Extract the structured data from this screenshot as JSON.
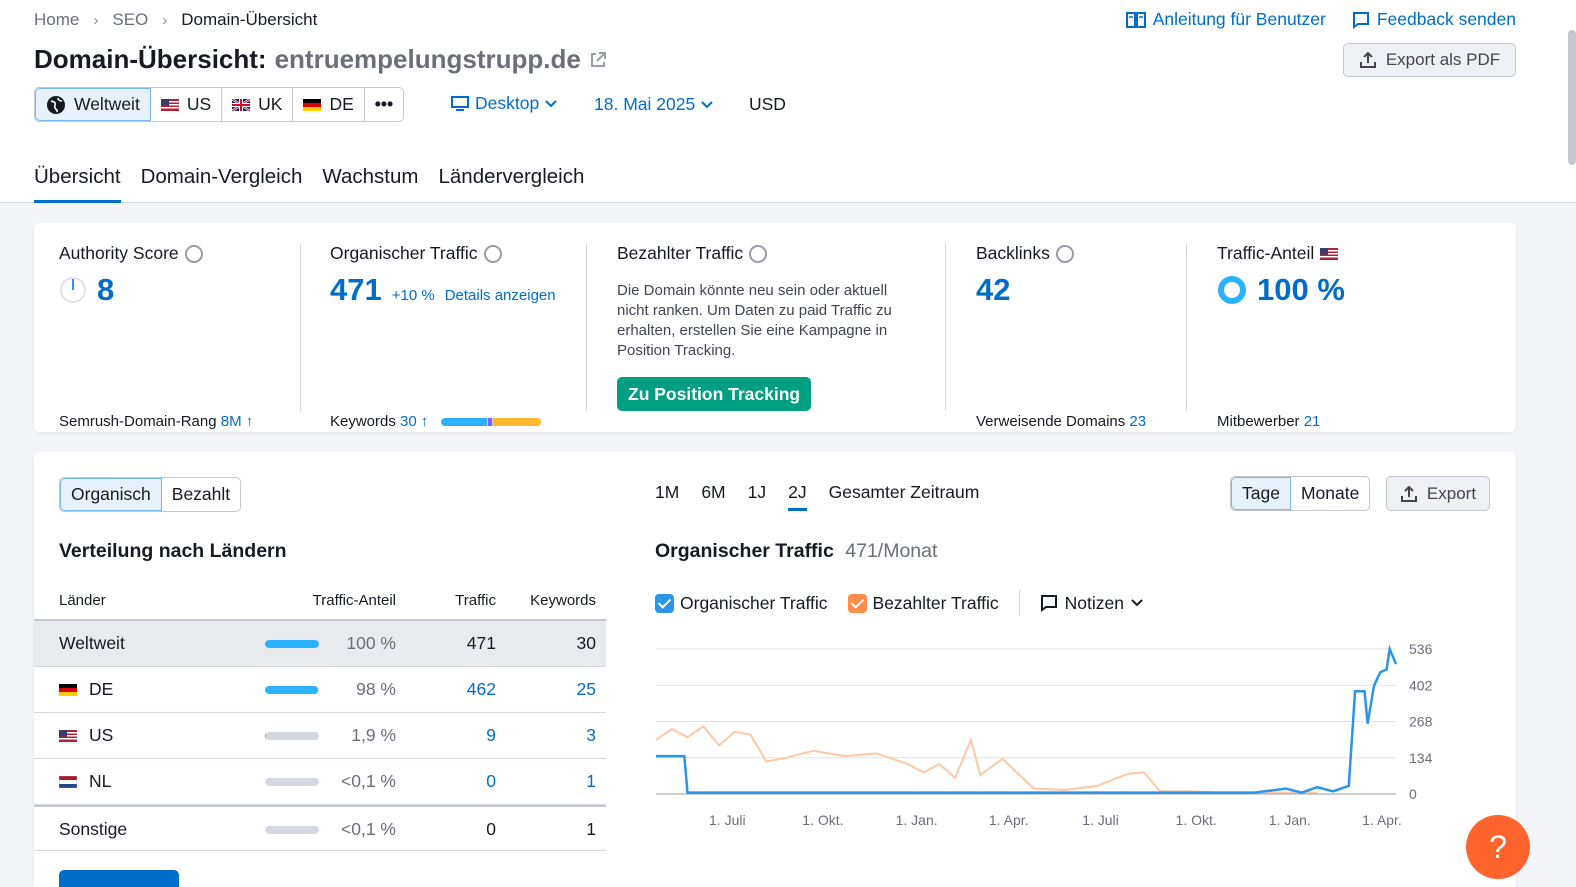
{
  "breadcrumb": {
    "home": "Home",
    "seo": "SEO",
    "current": "Domain-Übersicht"
  },
  "toplinks": {
    "guide": "Anleitung für Benutzer",
    "feedback": "Feedback senden"
  },
  "header": {
    "title_prefix": "Domain-Übersicht:",
    "domain": "entruempelungstrupp.de",
    "export_pdf": "Export als PDF"
  },
  "geo": {
    "worldwide": "Weltweit",
    "us": "US",
    "uk": "UK",
    "de": "DE",
    "more": "•••"
  },
  "filters": {
    "device": "Desktop",
    "date": "18. Mai 2025",
    "currency": "USD"
  },
  "tabs": [
    "Übersicht",
    "Domain-Vergleich",
    "Wachstum",
    "Ländervergleich"
  ],
  "metrics": {
    "authority": {
      "label": "Authority Score",
      "value": "8",
      "foot_label": "Semrush-Domain-Rang",
      "foot_value": "8M ↑"
    },
    "organic": {
      "label": "Organischer Traffic",
      "value": "471",
      "change": "+10 %",
      "details": "Details anzeigen",
      "foot_label": "Keywords",
      "foot_value": "30 ↑"
    },
    "paid": {
      "label": "Bezahlter Traffic",
      "desc": "Die Domain könnte neu sein oder aktuell nicht ranken. Um Daten zu paid Traffic zu erhalten, erstellen Sie eine Kampagne in Position Tracking.",
      "button": "Zu Position Tracking"
    },
    "backlinks": {
      "label": "Backlinks",
      "value": "42",
      "foot_label": "Verweisende Domains",
      "foot_value": "23"
    },
    "share": {
      "label": "Traffic-Anteil",
      "value": "100 %",
      "foot_label": "Mitbewerber",
      "foot_value": "21"
    }
  },
  "distribution": {
    "seg_organic": "Organisch",
    "seg_paid": "Bezahlt",
    "title": "Verteilung nach Ländern",
    "headers": {
      "country": "Länder",
      "share": "Traffic-Anteil",
      "traffic": "Traffic",
      "keywords": "Keywords"
    },
    "rows": [
      {
        "name": "Weltweit",
        "share": "100 %",
        "bar": 1.0,
        "traffic": "471",
        "keywords": "30"
      },
      {
        "name": "DE",
        "share": "98 %",
        "bar": 0.98,
        "traffic": "462",
        "keywords": "25"
      },
      {
        "name": "US",
        "share": "1,9 %",
        "bar": 0.019,
        "traffic": "9",
        "keywords": "3"
      },
      {
        "name": "NL",
        "share": "<0,1 %",
        "bar": 0.0,
        "traffic": "0",
        "keywords": "1"
      },
      {
        "name": "Sonstige",
        "share": "<0,1 %",
        "bar": 0.0,
        "traffic": "0",
        "keywords": "1"
      }
    ]
  },
  "chart_controls": {
    "periods": [
      "1M",
      "6M",
      "1J",
      "2J",
      "Gesamter Zeitraum"
    ],
    "days": "Tage",
    "months": "Monate",
    "export": "Export",
    "title": "Organischer Traffic",
    "subtitle": "471/Monat",
    "legend_organic": "Organischer Traffic",
    "legend_paid": "Bezahlter Traffic",
    "notes": "Notizen"
  },
  "colors": {
    "accent": "#006dca",
    "organic": "#2b95e9",
    "paid": "#ffc7a6",
    "green": "#009f81",
    "help": "#ff642d"
  },
  "chart_data": {
    "type": "line",
    "ylim": [
      0,
      536
    ],
    "yticks": [
      0,
      134,
      268,
      402,
      536
    ],
    "xticks": [
      "1. Juli",
      "1. Okt.",
      "1. Jan.",
      "1. Apr.",
      "1. Juli",
      "1. Okt.",
      "1. Jan.",
      "1. Apr."
    ],
    "x_range_months": [
      0,
      23.5
    ],
    "series": [
      {
        "name": "Organischer Traffic",
        "points": [
          [
            0,
            140
          ],
          [
            0.9,
            140
          ],
          [
            1,
            5
          ],
          [
            3,
            5
          ],
          [
            6,
            5
          ],
          [
            9,
            5
          ],
          [
            12,
            5
          ],
          [
            14,
            5
          ],
          [
            17,
            5
          ],
          [
            19,
            5
          ],
          [
            20,
            20
          ],
          [
            20.5,
            5
          ],
          [
            21,
            25
          ],
          [
            21.5,
            10
          ],
          [
            22,
            30
          ],
          [
            22.2,
            380
          ],
          [
            22.5,
            380
          ],
          [
            22.6,
            260
          ],
          [
            22.8,
            400
          ],
          [
            23,
            450
          ],
          [
            23.2,
            460
          ],
          [
            23.3,
            536
          ],
          [
            23.5,
            480
          ]
        ]
      },
      {
        "name": "Bezahlter Traffic",
        "points": [
          [
            0,
            200
          ],
          [
            0.5,
            240
          ],
          [
            1,
            210
          ],
          [
            1.5,
            250
          ],
          [
            2,
            180
          ],
          [
            2.5,
            230
          ],
          [
            3,
            220
          ],
          [
            3.5,
            120
          ],
          [
            4,
            130
          ],
          [
            5,
            160
          ],
          [
            6,
            140
          ],
          [
            7,
            150
          ],
          [
            8,
            110
          ],
          [
            8.5,
            80
          ],
          [
            9,
            110
          ],
          [
            9.5,
            60
          ],
          [
            10,
            200
          ],
          [
            10.3,
            70
          ],
          [
            11,
            130
          ],
          [
            12,
            20
          ],
          [
            13,
            15
          ],
          [
            14,
            30
          ],
          [
            15,
            75
          ],
          [
            15.5,
            80
          ],
          [
            16,
            10
          ],
          [
            17,
            10
          ],
          [
            18,
            5
          ],
          [
            20,
            5
          ],
          [
            21,
            5
          ]
        ]
      }
    ]
  }
}
